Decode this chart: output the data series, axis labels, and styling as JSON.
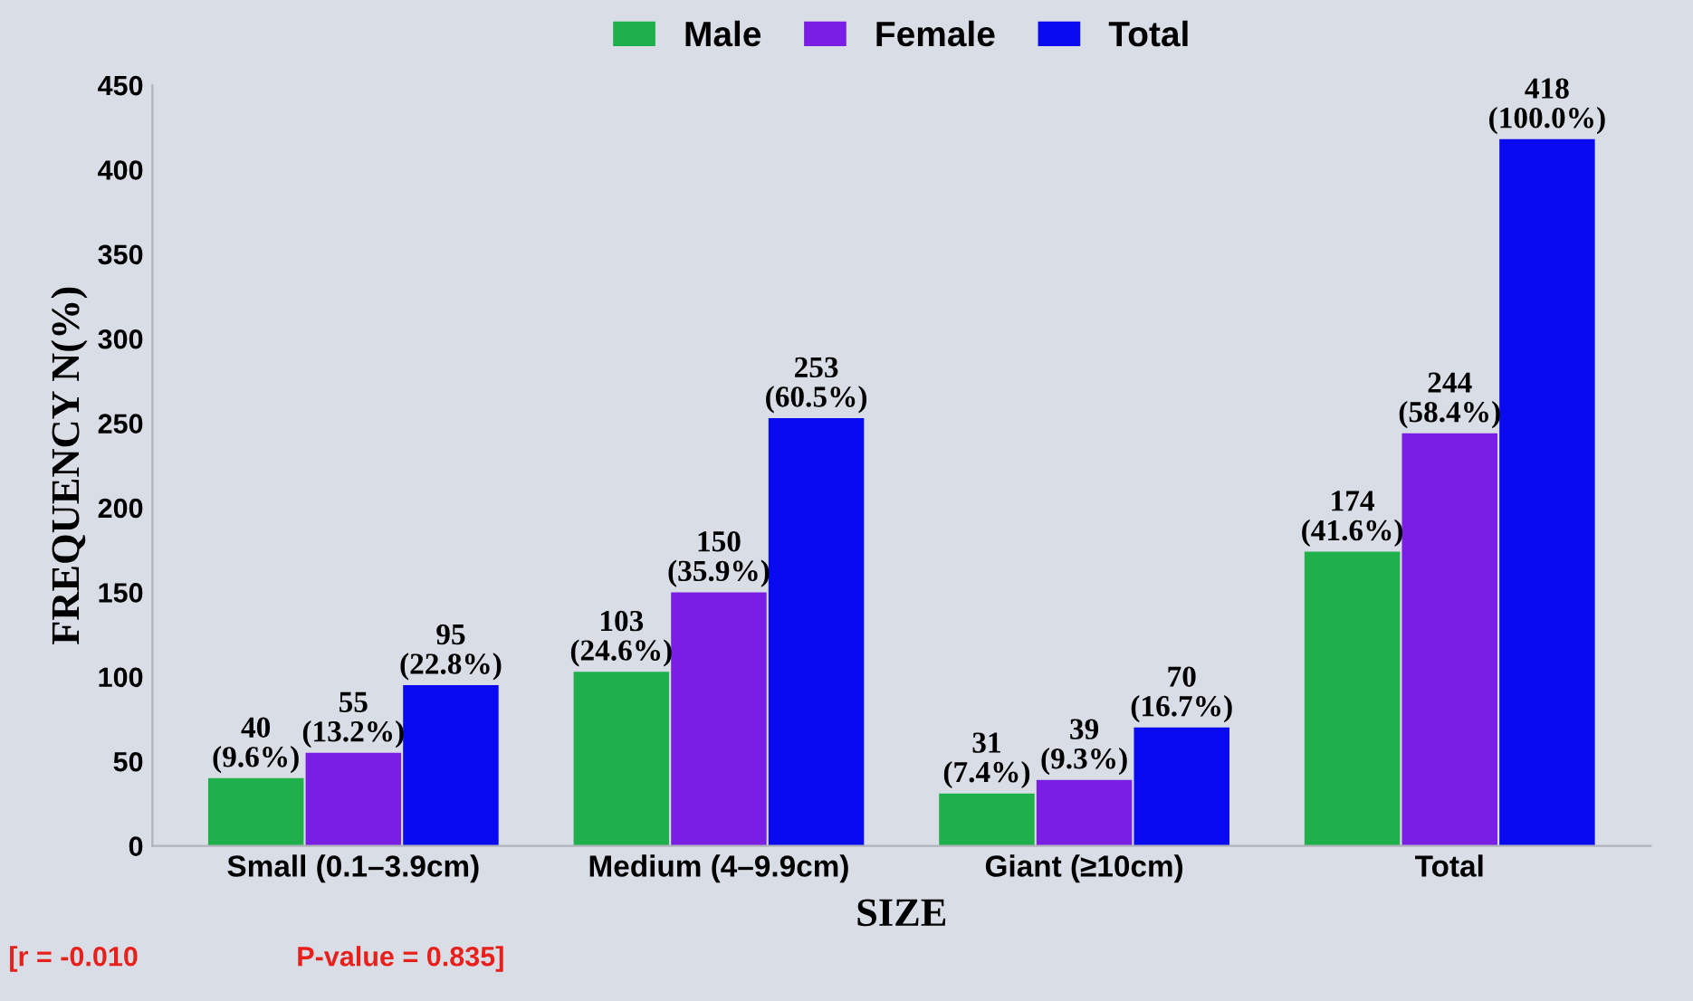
{
  "chart_data": {
    "type": "bar",
    "categories": [
      "Small (0.1–3.9cm)",
      "Medium (4–9.9cm)",
      "Giant (≥10cm)",
      "Total"
    ],
    "series": [
      {
        "name": "Male",
        "color": "#1fb04c",
        "values": [
          40,
          103,
          31,
          174
        ],
        "value_labels": [
          "40\n(9.6%)",
          "103\n(24.6%)",
          "31\n(7.4%)",
          "174\n(41.6%)"
        ]
      },
      {
        "name": "Female",
        "color": "#7a1ee6",
        "values": [
          55,
          150,
          39,
          244
        ],
        "value_labels": [
          "55\n(13.2%)",
          "150\n(35.9%)",
          "39\n(9.3%)",
          "244\n(58.4%)"
        ]
      },
      {
        "name": "Total",
        "color": "#0a0af0",
        "values": [
          95,
          253,
          70,
          418
        ],
        "value_labels": [
          "95\n(22.8%)",
          "253\n(60.5%)",
          "70\n(16.7%)",
          "418\n(100.0%)"
        ]
      }
    ],
    "xlabel": "SIZE",
    "ylabel": "FREQUENCY N(%)",
    "ylim": [
      0,
      450
    ],
    "yticks": [
      0,
      50,
      100,
      150,
      200,
      250,
      300,
      350,
      400,
      450
    ],
    "grid": false,
    "legend": "top",
    "annotations": [
      "[r = -0.010",
      "P-value = 0.835]"
    ]
  }
}
